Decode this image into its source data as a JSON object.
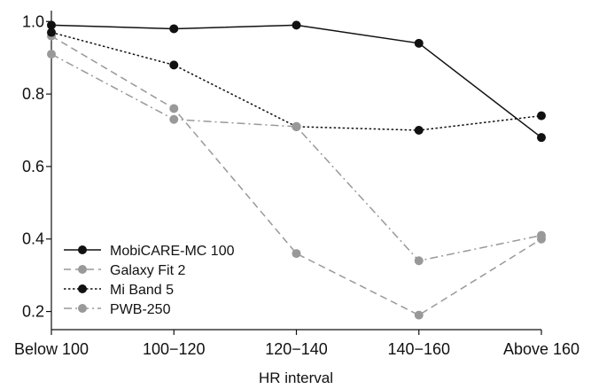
{
  "chart_data": {
    "type": "line",
    "title": "",
    "xlabel": "HR interval",
    "ylabel": "",
    "categories": [
      "Below 100",
      "100−120",
      "120−140",
      "140−160",
      "Above 160"
    ],
    "ylim": [
      0.15,
      1.03
    ],
    "yticks": [
      "0.2",
      "0.4",
      "0.6",
      "0.8",
      "1.0"
    ],
    "grid": false,
    "legend_position": "bottom-left",
    "series": [
      {
        "name": "MobiCARE-MC 100",
        "values": [
          0.99,
          0.98,
          0.99,
          0.94,
          0.68
        ],
        "color": "#111111",
        "line_style": "solid"
      },
      {
        "name": "Galaxy Fit 2",
        "values": [
          0.96,
          0.76,
          0.36,
          0.19,
          0.4
        ],
        "color": "#999999",
        "line_style": "dashed"
      },
      {
        "name": "Mi Band 5",
        "values": [
          0.97,
          0.88,
          0.71,
          0.7,
          0.74
        ],
        "color": "#111111",
        "line_style": "dotted"
      },
      {
        "name": "PWB-250",
        "values": [
          0.91,
          0.73,
          0.71,
          0.34,
          0.41
        ],
        "color": "#999999",
        "line_style": "dashdot"
      }
    ]
  }
}
